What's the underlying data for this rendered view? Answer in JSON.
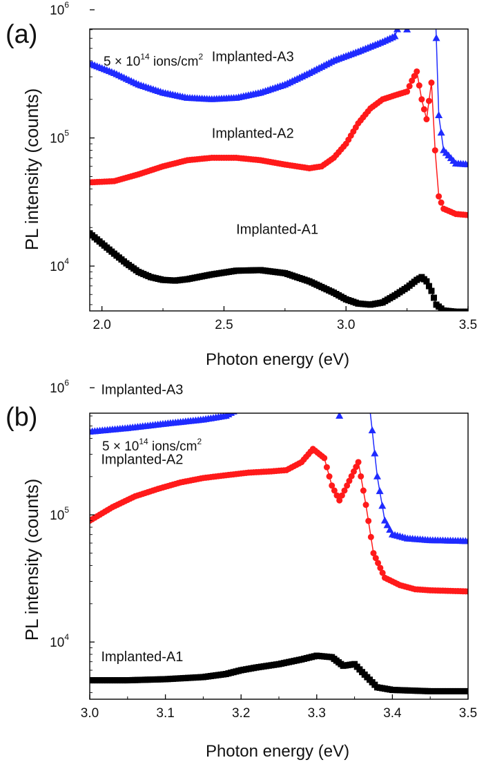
{
  "chart_data": [
    {
      "panel_label": "(a)",
      "type": "scatter",
      "xlabel": "Photon energy (eV)",
      "ylabel": "PL intensity (counts)",
      "annotation": {
        "text": "5 × 10",
        "exp": "14",
        "unit_text": " ions/cm",
        "unit_exp": "2"
      },
      "xlim": [
        1.95,
        3.5
      ],
      "ylim_log10": [
        3.65,
        5.85
      ],
      "yscale": "log",
      "x_ticks": [
        {
          "value": 2.0,
          "label": "2.0"
        },
        {
          "value": 2.5,
          "label": "2.5"
        },
        {
          "value": 3.0,
          "label": "3.0"
        },
        {
          "value": 3.5,
          "label": "3.5"
        }
      ],
      "y_ticks": [
        {
          "value": 4,
          "base": "10",
          "exp": "4"
        },
        {
          "value": 5,
          "base": "10",
          "exp": "5"
        },
        {
          "value": 6,
          "base": "10",
          "exp": "6"
        }
      ],
      "series": [
        {
          "name": "Implanted-A3",
          "color": "#1f2bff",
          "marker": "triangle",
          "label_x": 2.45,
          "label_y_log10": 5.6,
          "x": [
            1.95,
            2.05,
            2.15,
            2.25,
            2.35,
            2.45,
            2.55,
            2.65,
            2.75,
            2.85,
            2.95,
            3.05,
            3.15,
            3.2,
            3.23,
            3.25,
            3.28,
            3.3,
            3.32,
            3.335,
            3.35,
            3.36,
            3.37,
            3.38,
            3.4,
            3.45,
            3.5
          ],
          "y": [
            380000,
            320000,
            260000,
            225000,
            205000,
            200000,
            205000,
            225000,
            260000,
            320000,
            400000,
            470000,
            560000,
            620000,
            900000,
            700000,
            1400000,
            2000000,
            1500000,
            900000,
            4500000,
            2200000,
            600000,
            150000,
            80000,
            63000,
            62000
          ]
        },
        {
          "name": "Implanted-A2",
          "color": "#ff1a1a",
          "marker": "circle",
          "label_x": 2.45,
          "label_y_log10": 5.0,
          "x": [
            1.95,
            2.05,
            2.15,
            2.25,
            2.35,
            2.45,
            2.55,
            2.65,
            2.75,
            2.85,
            2.9,
            2.95,
            3.0,
            3.05,
            3.1,
            3.15,
            3.2,
            3.25,
            3.27,
            3.29,
            3.31,
            3.33,
            3.35,
            3.365,
            3.38,
            3.4,
            3.45,
            3.5
          ],
          "y": [
            45000,
            46000,
            52000,
            60000,
            67000,
            70000,
            70000,
            67000,
            62000,
            58000,
            60000,
            70000,
            90000,
            130000,
            170000,
            200000,
            215000,
            230000,
            280000,
            330000,
            200000,
            140000,
            270000,
            80000,
            35000,
            28000,
            25500,
            25000
          ]
        },
        {
          "name": "Implanted-A1",
          "color": "#000000",
          "marker": "square",
          "label_x": 2.55,
          "label_y_log10": 4.25,
          "x": [
            1.95,
            2.0,
            2.05,
            2.1,
            2.15,
            2.2,
            2.25,
            2.3,
            2.35,
            2.45,
            2.55,
            2.65,
            2.75,
            2.85,
            2.95,
            3.0,
            3.05,
            3.1,
            3.15,
            3.2,
            3.25,
            3.29,
            3.31,
            3.33,
            3.35,
            3.37,
            3.4,
            3.45,
            3.5
          ],
          "y": [
            18000,
            15000,
            12500,
            10500,
            9000,
            8200,
            7800,
            7700,
            7900,
            8600,
            9200,
            9300,
            8800,
            7600,
            6200,
            5500,
            5100,
            5000,
            5200,
            5900,
            6800,
            7800,
            8200,
            7600,
            6400,
            5000,
            4500,
            4400,
            4400
          ]
        }
      ]
    },
    {
      "panel_label": "(b)",
      "type": "scatter",
      "xlabel": "Photon energy (eV)",
      "ylabel": "PL intensity (counts)",
      "annotation": {
        "text": "5 × 10",
        "exp": "14",
        "unit_text": " ions/cm",
        "unit_exp": "2"
      },
      "xlim": [
        3.0,
        3.5
      ],
      "ylim_log10": [
        3.55,
        5.8
      ],
      "yscale": "log",
      "x_ticks": [
        {
          "value": 3.0,
          "label": "3.0"
        },
        {
          "value": 3.1,
          "label": "3.1"
        },
        {
          "value": 3.2,
          "label": "3.2"
        },
        {
          "value": 3.3,
          "label": "3.3"
        },
        {
          "value": 3.4,
          "label": "3.4"
        },
        {
          "value": 3.5,
          "label": "3.5"
        }
      ],
      "y_ticks": [
        {
          "value": 4,
          "base": "10",
          "exp": "4"
        },
        {
          "value": 5,
          "base": "10",
          "exp": "5"
        },
        {
          "value": 6,
          "base": "10",
          "exp": "6"
        }
      ],
      "series": [
        {
          "name": "Implanted-A3",
          "color": "#1f2bff",
          "marker": "triangle",
          "label_x": 3.015,
          "label_y_log10": 5.95,
          "x": [
            3.0,
            3.05,
            3.1,
            3.15,
            3.18,
            3.2,
            3.22,
            3.235,
            3.25,
            3.27,
            3.29,
            3.3,
            3.31,
            3.32,
            3.33,
            3.34,
            3.35,
            3.355,
            3.36,
            3.37,
            3.38,
            3.39,
            3.4,
            3.42,
            3.45,
            3.5
          ],
          "y": [
            450000,
            480000,
            520000,
            560000,
            600000,
            700000,
            820000,
            850000,
            700000,
            950000,
            1700000,
            2100000,
            1500000,
            900000,
            600000,
            1200000,
            3500000,
            4500000,
            2500000,
            700000,
            200000,
            90000,
            70000,
            65000,
            63000,
            62000
          ]
        },
        {
          "name": "Implanted-A2",
          "color": "#ff1a1a",
          "marker": "circle",
          "label_x": 3.015,
          "label_y_log10": 5.4,
          "x": [
            3.0,
            3.03,
            3.06,
            3.09,
            3.12,
            3.15,
            3.18,
            3.21,
            3.24,
            3.26,
            3.28,
            3.295,
            3.31,
            3.32,
            3.33,
            3.34,
            3.355,
            3.365,
            3.375,
            3.39,
            3.41,
            3.43,
            3.45,
            3.5
          ],
          "y": [
            90000,
            115000,
            140000,
            160000,
            180000,
            195000,
            205000,
            215000,
            220000,
            225000,
            260000,
            330000,
            280000,
            170000,
            130000,
            170000,
            260000,
            120000,
            50000,
            32000,
            28000,
            26000,
            25500,
            25000
          ]
        },
        {
          "name": "Implanted-A1",
          "color": "#000000",
          "marker": "square",
          "label_x": 3.015,
          "label_y_log10": 3.85,
          "x": [
            3.0,
            3.05,
            3.1,
            3.15,
            3.18,
            3.2,
            3.22,
            3.25,
            3.28,
            3.3,
            3.32,
            3.335,
            3.35,
            3.36,
            3.38,
            3.4,
            3.45,
            3.5
          ],
          "y": [
            5000,
            5000,
            5100,
            5300,
            5600,
            6000,
            6300,
            6700,
            7300,
            7800,
            7600,
            6500,
            6700,
            5800,
            4400,
            4200,
            4100,
            4100
          ]
        }
      ]
    }
  ]
}
